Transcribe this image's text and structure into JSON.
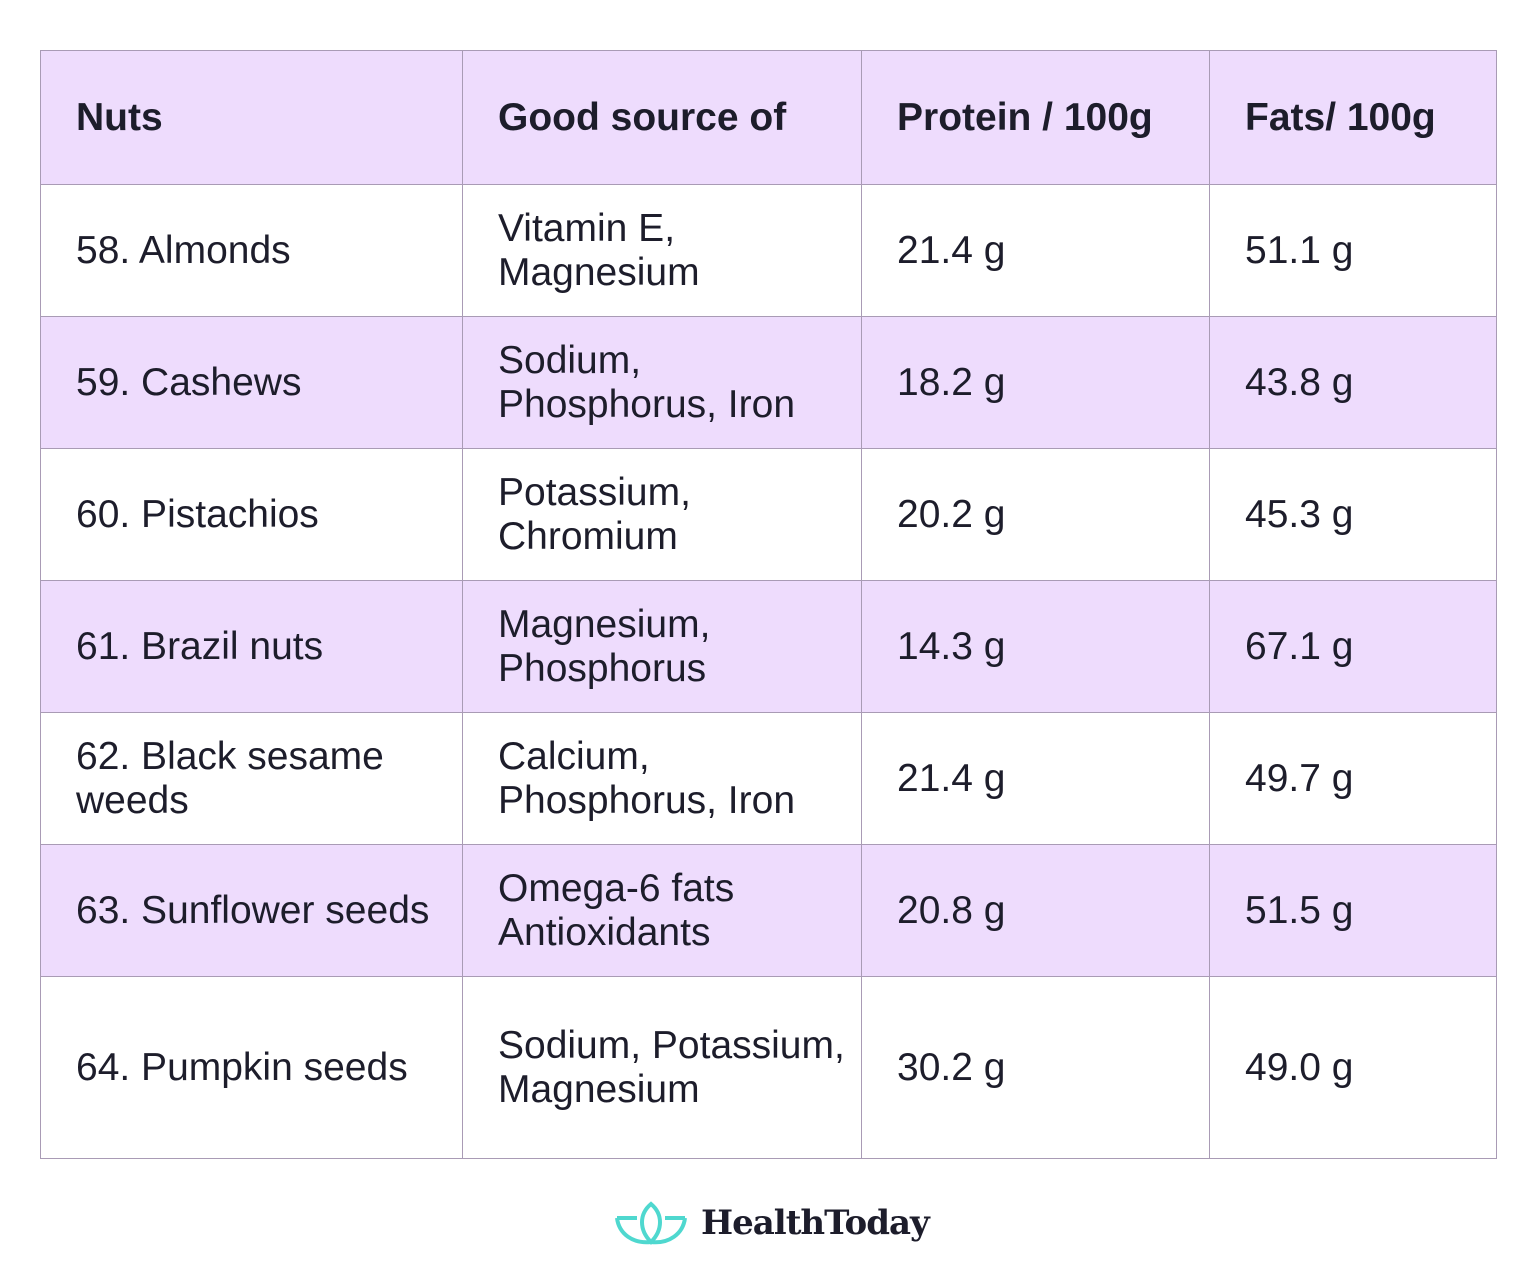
{
  "headers": [
    "Nuts",
    "Good source of",
    "Protein / 100g",
    "Fats/ 100g"
  ],
  "rows": [
    [
      "58. Almonds",
      "Vitamin E, Magnesium",
      "21.4 g",
      "51.1 g"
    ],
    [
      "59. Cashews",
      "Sodium, Phosphorus, Iron",
      "18.2 g",
      "43.8 g"
    ],
    [
      "60. Pistachios",
      "Potassium, Chromium",
      "20.2 g",
      "45.3 g"
    ],
    [
      "61. Brazil nuts",
      "Magnesium, Phosphorus",
      "14.3 g",
      "67.1 g"
    ],
    [
      "62. Black sesame weeds",
      "Calcium, Phosphorus, Iron",
      "21.4 g",
      "49.7 g"
    ],
    [
      "63. Sunflower seeds",
      "Omega-6 fats Antioxidants",
      "20.8 g",
      "51.5 g"
    ],
    [
      "64. Pumpkin seeds",
      "Sodium, Potassium, Magnesium",
      "30.2 g",
      "49.0 g"
    ]
  ],
  "logo": {
    "text": "HealthToday",
    "icon": "lotus-icon",
    "color": "#4fd8cf"
  },
  "colors": {
    "header_bg": "#eedcfd",
    "alt_row_bg": "#eedcfd"
  }
}
